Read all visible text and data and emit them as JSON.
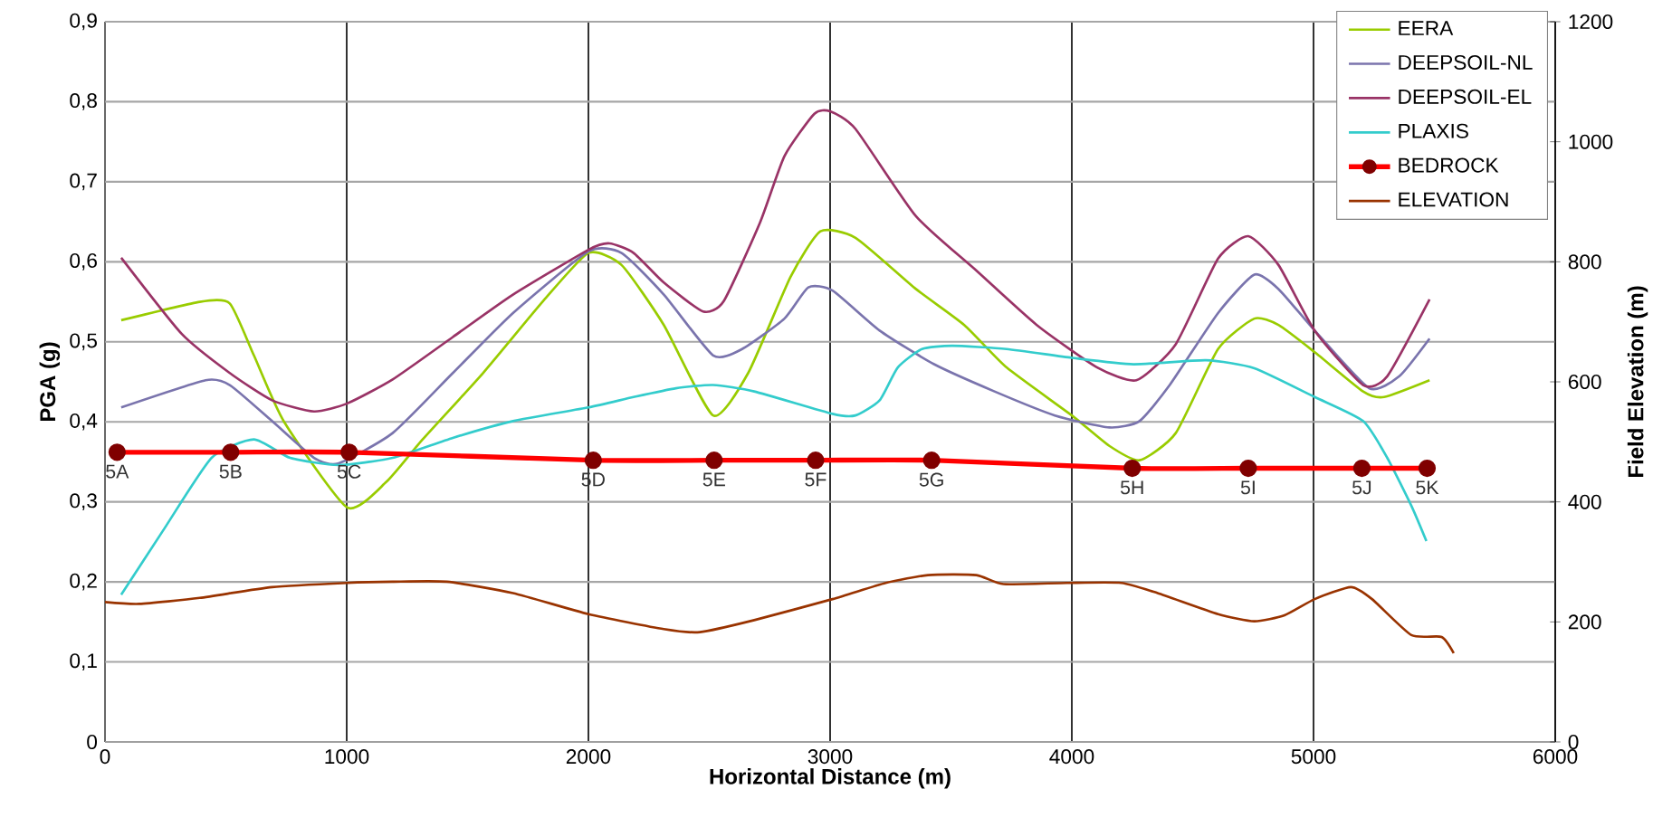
{
  "chart_data": {
    "type": "line",
    "xlabel": "Horizontal Distance (m)",
    "ylabel": "PGA (g)",
    "y2label": "Field Elevation (m)",
    "xlim": [
      0,
      6000
    ],
    "xticks": [
      0,
      1000,
      2000,
      3000,
      4000,
      5000,
      6000
    ],
    "ylim": [
      0,
      0.9
    ],
    "yticks": [
      0,
      {
        "value": 0.1,
        "label": "0,1"
      },
      {
        "value": 0.2,
        "label": "0,2"
      },
      {
        "value": 0.3,
        "label": "0,3"
      },
      {
        "value": 0.4,
        "label": "0,4"
      },
      {
        "value": 0.5,
        "label": "0,5"
      },
      {
        "value": 0.6,
        "label": "0,6"
      },
      {
        "value": 0.7,
        "label": "0,7"
      },
      {
        "value": 0.8,
        "label": "0,8"
      },
      {
        "value": 0.9,
        "label": "0,9"
      }
    ],
    "y2lim": [
      0,
      1200
    ],
    "y2ticks": [
      0,
      200,
      400,
      600,
      800,
      1000,
      1200
    ],
    "grid": true,
    "legend": "top right",
    "series": [
      {
        "name": "EERA",
        "color": "#99cc00",
        "x": [
          67,
          392,
          516,
          616,
          741,
          1002,
          1164,
          1314,
          1564,
          1813,
          2000,
          2137,
          2312,
          2516,
          2661,
          2836,
          2960,
          3105,
          3355,
          3555,
          3730,
          4000,
          4155,
          4280,
          4430,
          4605,
          4755,
          4855,
          5005,
          5205,
          5292,
          5480
        ],
        "values": [
          0.527,
          0.55,
          0.548,
          0.483,
          0.4,
          0.293,
          0.325,
          0.378,
          0.461,
          0.551,
          0.611,
          0.596,
          0.521,
          0.408,
          0.461,
          0.581,
          0.638,
          0.63,
          0.566,
          0.521,
          0.468,
          0.408,
          0.37,
          0.352,
          0.386,
          0.491,
          0.529,
          0.521,
          0.487,
          0.438,
          0.431,
          0.452
        ]
      },
      {
        "name": "DEEPSOIL-NL",
        "color": "#7a74ad",
        "x": [
          67,
          416,
          516,
          691,
          865,
          965,
          1190,
          1439,
          1688,
          2000,
          2137,
          2312,
          2516,
          2636,
          2811,
          2910,
          3010,
          3205,
          3430,
          3680,
          3930,
          4155,
          4280,
          4405,
          4605,
          4755,
          4855,
          5005,
          5230,
          5355,
          5480
        ],
        "values": [
          0.418,
          0.452,
          0.446,
          0.401,
          0.355,
          0.348,
          0.386,
          0.461,
          0.536,
          0.613,
          0.611,
          0.559,
          0.483,
          0.491,
          0.529,
          0.568,
          0.564,
          0.514,
          0.472,
          0.438,
          0.408,
          0.393,
          0.401,
          0.446,
          0.536,
          0.584,
          0.566,
          0.514,
          0.442,
          0.457,
          0.504
        ]
      },
      {
        "name": "DEEPSOIL-EL",
        "color": "#993366",
        "x": [
          67,
          317,
          516,
          691,
          865,
          1002,
          1190,
          1439,
          1688,
          2000,
          2087,
          2187,
          2312,
          2474,
          2560,
          2710,
          2811,
          2935,
          3000,
          3105,
          3355,
          3605,
          3855,
          4105,
          4267,
          4430,
          4605,
          4730,
          4855,
          5005,
          5205,
          5305,
          5480
        ],
        "values": [
          0.605,
          0.51,
          0.461,
          0.427,
          0.413,
          0.423,
          0.453,
          0.506,
          0.559,
          0.615,
          0.623,
          0.611,
          0.574,
          0.538,
          0.551,
          0.649,
          0.732,
          0.785,
          0.788,
          0.766,
          0.657,
          0.589,
          0.521,
          0.468,
          0.452,
          0.497,
          0.604,
          0.632,
          0.596,
          0.514,
          0.446,
          0.457,
          0.553
        ]
      },
      {
        "name": "PLAXIS",
        "color": "#33cccc",
        "x": [
          67,
          242,
          441,
          616,
          766,
          965,
          1190,
          1439,
          1688,
          2000,
          2187,
          2362,
          2516,
          2686,
          3010,
          3105,
          3205,
          3280,
          3380,
          3505,
          3730,
          4000,
          4255,
          4555,
          4755,
          5005,
          5205,
          5305,
          5405,
          5467
        ],
        "values": [
          0.184,
          0.265,
          0.355,
          0.378,
          0.355,
          0.346,
          0.355,
          0.38,
          0.401,
          0.418,
          0.431,
          0.442,
          0.446,
          0.438,
          0.41,
          0.408,
          0.427,
          0.468,
          0.491,
          0.495,
          0.491,
          0.48,
          0.472,
          0.477,
          0.467,
          0.431,
          0.401,
          0.355,
          0.295,
          0.251
        ]
      },
      {
        "name": "BEDROCK",
        "color": "#ff0000",
        "marker": "circle",
        "x": [
          50,
          520,
          1010,
          2020,
          2520,
          2940,
          3420,
          4250,
          4730,
          5200,
          5470
        ],
        "values": [
          0.362,
          0.362,
          0.362,
          0.352,
          0.352,
          0.352,
          0.352,
          0.342,
          0.342,
          0.342,
          0.342
        ]
      },
      {
        "name": "ELEVATION",
        "color": "#993300",
        "axis": "y2",
        "x": [
          0,
          142,
          392,
          691,
          1002,
          1190,
          1414,
          1688,
          2000,
          2312,
          2461,
          2686,
          3010,
          3230,
          3405,
          3605,
          3717,
          3980,
          4205,
          4355,
          4605,
          4755,
          4880,
          5005,
          5155,
          5242,
          5405,
          5530,
          5580
        ],
        "values": [
          233,
          230,
          240,
          258,
          265,
          267,
          267,
          248,
          213,
          188,
          183,
          203,
          238,
          265,
          278,
          278,
          263,
          265,
          265,
          248,
          213,
          201,
          211,
          238,
          258,
          238,
          178,
          175,
          148
        ]
      }
    ],
    "annotations": [
      {
        "text": "5A",
        "x": 50,
        "y": 0.362
      },
      {
        "text": "5B",
        "x": 520,
        "y": 0.362
      },
      {
        "text": "5C",
        "x": 1010,
        "y": 0.362
      },
      {
        "text": "5D",
        "x": 2020,
        "y": 0.352
      },
      {
        "text": "5E",
        "x": 2520,
        "y": 0.352
      },
      {
        "text": "5F",
        "x": 2940,
        "y": 0.352
      },
      {
        "text": "5G",
        "x": 3420,
        "y": 0.352
      },
      {
        "text": "5H",
        "x": 4250,
        "y": 0.342
      },
      {
        "text": "5I",
        "x": 4730,
        "y": 0.342
      },
      {
        "text": "5J",
        "x": 5200,
        "y": 0.342
      },
      {
        "text": "5K",
        "x": 5470,
        "y": 0.342
      }
    ]
  }
}
